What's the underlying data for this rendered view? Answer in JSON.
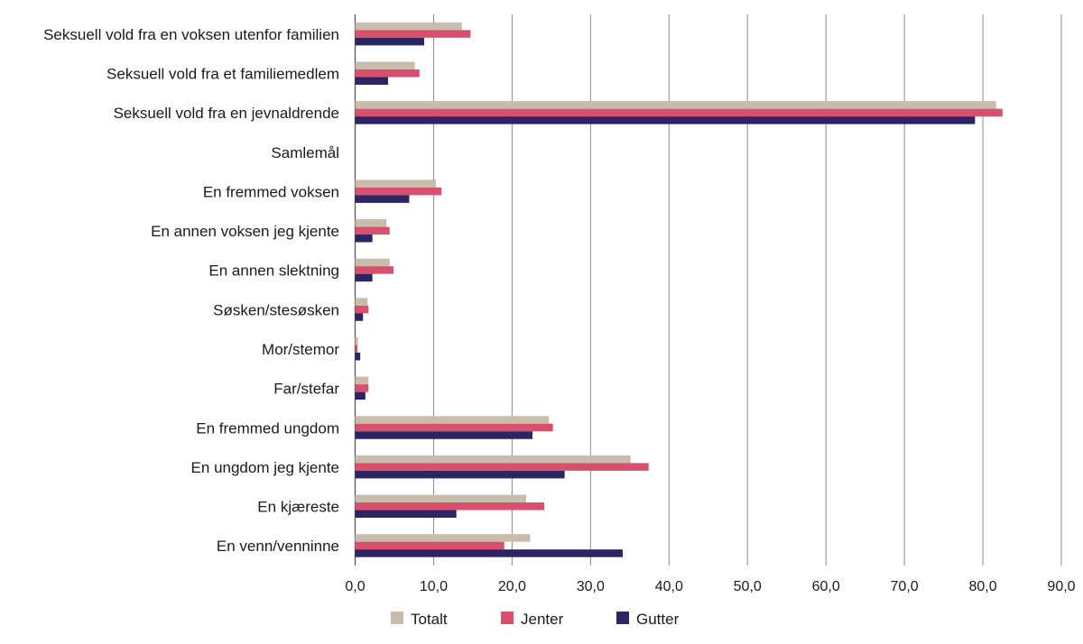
{
  "chart_data": {
    "type": "bar",
    "orientation": "horizontal",
    "title": "",
    "xlabel": "",
    "ylabel": "",
    "xlim": [
      0,
      90
    ],
    "xticks": [
      "0,0",
      "10,0",
      "20,0",
      "30,0",
      "40,0",
      "50,0",
      "60,0",
      "70,0",
      "80,0",
      "90,0"
    ],
    "grid": "vertical",
    "legend_position": "bottom",
    "categories": [
      "Seksuell vold fra en voksen utenfor familien",
      "Seksuell vold fra et familiemedlem",
      "Seksuell vold fra en jevnaldrende",
      "Samlemål",
      "En fremmed voksen",
      "En annen voksen jeg kjente",
      "En annen slektning",
      "Søsken/stesøsken",
      "Mor/stemor",
      "Far/stefar",
      "En fremmed ungdom",
      "En ungdom jeg kjente",
      "En kjæreste",
      "En venn/venninne"
    ],
    "series": [
      {
        "name": "Totalt",
        "color": "#c9bcaa",
        "values": [
          13.6,
          7.6,
          81.7,
          null,
          10.3,
          4.0,
          4.4,
          1.6,
          0.35,
          1.7,
          24.7,
          35.1,
          21.8,
          22.3
        ]
      },
      {
        "name": "Jenter",
        "color": "#d9506f",
        "values": [
          14.7,
          8.2,
          82.5,
          null,
          11.0,
          4.4,
          4.9,
          1.7,
          0.3,
          1.7,
          25.2,
          37.4,
          24.1,
          19.0
        ]
      },
      {
        "name": "Gutter",
        "color": "#2c2564",
        "values": [
          8.8,
          4.2,
          79.0,
          null,
          6.9,
          2.2,
          2.2,
          1.0,
          0.65,
          1.3,
          22.6,
          26.7,
          12.9,
          34.1
        ]
      }
    ]
  }
}
